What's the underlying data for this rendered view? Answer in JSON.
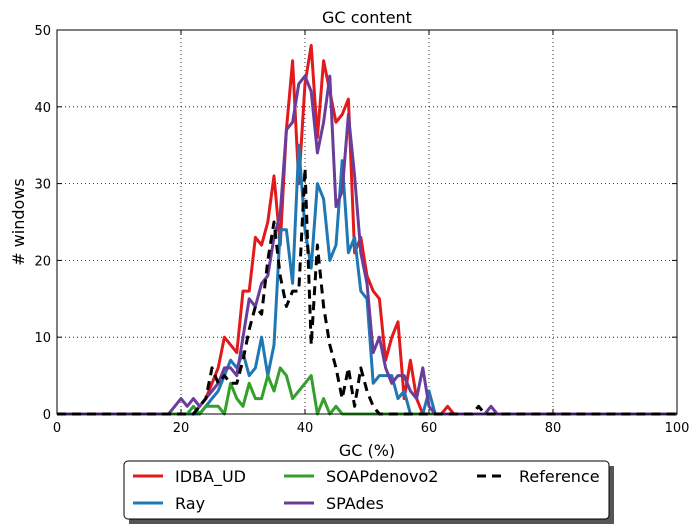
{
  "chart_data": {
    "type": "line",
    "title": "GC content",
    "xlabel": "GC (%)",
    "ylabel": "# windows",
    "xlim": [
      0,
      100
    ],
    "ylim": [
      0,
      50
    ],
    "xticks": [
      0,
      20,
      40,
      60,
      80,
      100
    ],
    "yticks": [
      0,
      10,
      20,
      30,
      40,
      50
    ],
    "grid": true,
    "legend_position": "bottom-center, below axes",
    "x": [
      0,
      17,
      18,
      19,
      20,
      21,
      22,
      23,
      24,
      25,
      26,
      27,
      28,
      29,
      30,
      31,
      32,
      33,
      34,
      35,
      36,
      37,
      38,
      39,
      40,
      41,
      42,
      43,
      44,
      45,
      46,
      47,
      48,
      49,
      50,
      51,
      52,
      53,
      54,
      55,
      56,
      57,
      58,
      59,
      60,
      61,
      62,
      63,
      64,
      65,
      66,
      67,
      68,
      69,
      70,
      71,
      72,
      100
    ],
    "series": [
      {
        "name": "IDBA_UD",
        "color": "#e31a1c",
        "dash": "solid",
        "values": [
          0,
          0,
          0,
          0,
          0,
          0,
          0,
          1,
          2,
          4,
          6,
          10,
          9,
          8,
          16,
          16,
          23,
          22,
          25,
          31,
          22,
          37,
          46,
          30,
          43,
          48,
          36,
          46,
          42,
          38,
          39,
          41,
          21,
          23,
          18,
          16,
          15,
          7,
          10,
          12,
          2,
          7,
          2,
          0,
          0,
          0,
          0,
          1,
          0,
          0,
          0,
          0,
          0,
          0,
          0,
          0,
          0,
          0
        ]
      },
      {
        "name": "Ray",
        "color": "#1f78b4",
        "dash": "solid",
        "values": [
          0,
          0,
          0,
          0,
          0,
          0,
          0,
          0,
          1,
          2,
          3,
          5,
          7,
          6,
          8,
          5,
          6,
          10,
          5,
          9,
          24,
          24,
          17,
          35,
          24,
          19,
          30,
          28,
          20,
          22,
          33,
          21,
          23,
          16,
          15,
          4,
          5,
          5,
          5,
          2,
          3,
          0,
          0,
          0,
          3,
          0,
          0,
          0,
          0,
          0,
          0,
          0,
          0,
          0,
          0,
          0,
          0,
          0
        ]
      },
      {
        "name": "SOAPdenovo2",
        "color": "#33a02c",
        "dash": "solid",
        "values": [
          0,
          0,
          0,
          0,
          0,
          0,
          1,
          0,
          1,
          1,
          1,
          0,
          4,
          2,
          1,
          4,
          2,
          2,
          5,
          3,
          6,
          5,
          2,
          3,
          4,
          5,
          0,
          2,
          0,
          1,
          0,
          0,
          0,
          0,
          0,
          0,
          0,
          0,
          0,
          0,
          0,
          0,
          0,
          0,
          0,
          0,
          0,
          0,
          0,
          0,
          0,
          0,
          0,
          0,
          0,
          0,
          0,
          0
        ]
      },
      {
        "name": "SPAdes",
        "color": "#6a3d9a",
        "dash": "solid",
        "values": [
          0,
          0,
          0,
          1,
          2,
          1,
          2,
          1,
          2,
          3,
          4,
          6,
          6,
          5,
          10,
          15,
          14,
          17,
          18,
          23,
          26,
          37,
          38,
          43,
          44,
          42,
          34,
          38,
          44,
          27,
          29,
          39,
          31,
          21,
          17,
          8,
          10,
          6,
          4,
          5,
          5,
          3,
          2,
          6,
          1,
          0,
          0,
          0,
          0,
          0,
          0,
          0,
          0,
          0,
          1,
          0,
          0,
          0
        ]
      },
      {
        "name": "Reference",
        "color": "#000000",
        "dash": "dashed",
        "values": [
          0,
          0,
          0,
          0,
          0,
          0,
          0,
          1,
          2,
          6,
          4,
          5,
          4,
          4,
          7,
          11,
          14,
          13,
          20,
          25,
          18,
          14,
          16,
          16,
          32,
          9,
          22,
          14,
          9,
          6,
          2,
          6,
          1,
          6,
          3,
          1,
          0,
          0,
          0,
          0,
          0,
          0,
          0,
          0,
          0,
          0,
          0,
          0,
          0,
          0,
          0,
          0,
          1,
          0,
          0,
          0,
          0,
          0
        ]
      }
    ]
  }
}
